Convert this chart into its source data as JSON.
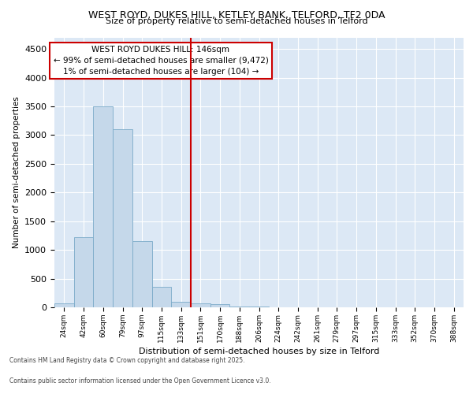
{
  "title1": "WEST ROYD, DUKES HILL, KETLEY BANK, TELFORD, TF2 0DA",
  "title2": "Size of property relative to semi-detached houses in Telford",
  "xlabel": "Distribution of semi-detached houses by size in Telford",
  "ylabel": "Number of semi-detached properties",
  "categories": [
    "24sqm",
    "42sqm",
    "60sqm",
    "79sqm",
    "97sqm",
    "115sqm",
    "133sqm",
    "151sqm",
    "170sqm",
    "188sqm",
    "206sqm",
    "224sqm",
    "242sqm",
    "261sqm",
    "279sqm",
    "297sqm",
    "315sqm",
    "333sqm",
    "352sqm",
    "370sqm",
    "388sqm"
  ],
  "values": [
    75,
    1225,
    3500,
    3100,
    1150,
    350,
    100,
    75,
    50,
    20,
    8,
    3,
    2,
    1,
    0,
    0,
    0,
    0,
    0,
    0,
    0
  ],
  "bar_color": "#c5d8ea",
  "bar_edge_color": "#7aaac8",
  "vline_position": 7,
  "vline_color": "#cc0000",
  "annotation_title": "WEST ROYD DUKES HILL: 146sqm",
  "annotation_line1": "← 99% of semi-detached houses are smaller (9,472)",
  "annotation_line2": "1% of semi-detached houses are larger (104) →",
  "annotation_box_facecolor": "#ffffff",
  "annotation_box_edgecolor": "#cc0000",
  "ylim": [
    0,
    4700
  ],
  "yticks": [
    0,
    500,
    1000,
    1500,
    2000,
    2500,
    3000,
    3500,
    4000,
    4500
  ],
  "plot_bg_color": "#dce8f5",
  "fig_bg_color": "#ffffff",
  "grid_color": "#ffffff",
  "footer1": "Contains HM Land Registry data © Crown copyright and database right 2025.",
  "footer2": "Contains public sector information licensed under the Open Government Licence v3.0."
}
